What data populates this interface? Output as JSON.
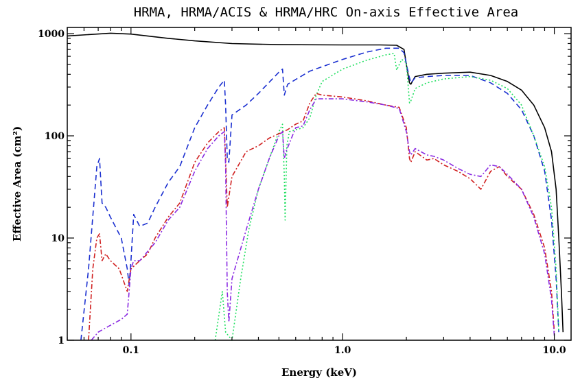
{
  "chart_data": {
    "type": "line",
    "title": "HRMA, HRMA/ACIS & HRMA/HRC On-axis Effective Area",
    "xlabel": "Energy (keV)",
    "ylabel": "Effective Area  (cm²)",
    "xscale": "log",
    "yscale": "log",
    "xlim": [
      0.05,
      12.0
    ],
    "ylim": [
      1,
      1150
    ],
    "grid": false,
    "x_ticks": [
      {
        "value": 0.1,
        "label": "0.1"
      },
      {
        "value": 1.0,
        "label": "1.0"
      },
      {
        "value": 10.0,
        "label": "10.0"
      }
    ],
    "y_ticks": [
      {
        "value": 1,
        "label": "1"
      },
      {
        "value": 10,
        "label": "10"
      },
      {
        "value": 100,
        "label": "100"
      },
      {
        "value": 1000,
        "label": "1000"
      }
    ],
    "series": [
      {
        "color": "#000000",
        "dash": "solid",
        "points": [
          [
            0.05,
            950
          ],
          [
            0.08,
            1010
          ],
          [
            0.1,
            990
          ],
          [
            0.15,
            900
          ],
          [
            0.2,
            850
          ],
          [
            0.3,
            800
          ],
          [
            0.5,
            780
          ],
          [
            1.0,
            775
          ],
          [
            1.5,
            775
          ],
          [
            1.8,
            770
          ],
          [
            1.95,
            700
          ],
          [
            2.0,
            500
          ],
          [
            2.07,
            330
          ],
          [
            2.1,
            320
          ],
          [
            2.2,
            380
          ],
          [
            2.5,
            400
          ],
          [
            3.0,
            410
          ],
          [
            4.0,
            420
          ],
          [
            5.0,
            390
          ],
          [
            6.0,
            340
          ],
          [
            7.0,
            280
          ],
          [
            8.0,
            200
          ],
          [
            9.0,
            120
          ],
          [
            9.7,
            70
          ],
          [
            10.2,
            30
          ],
          [
            10.5,
            10
          ],
          [
            10.8,
            3
          ],
          [
            11.0,
            1.2
          ]
        ]
      },
      {
        "color": "#1a2fd0",
        "dash": "dashed",
        "points": [
          [
            0.058,
            1
          ],
          [
            0.063,
            5
          ],
          [
            0.069,
            50
          ],
          [
            0.071,
            60
          ],
          [
            0.073,
            22
          ],
          [
            0.076,
            20
          ],
          [
            0.08,
            16
          ],
          [
            0.09,
            10
          ],
          [
            0.096,
            5
          ],
          [
            0.098,
            3.5
          ],
          [
            0.1,
            6
          ],
          [
            0.103,
            17
          ],
          [
            0.11,
            13
          ],
          [
            0.12,
            14
          ],
          [
            0.13,
            20
          ],
          [
            0.15,
            35
          ],
          [
            0.17,
            50
          ],
          [
            0.2,
            120
          ],
          [
            0.23,
            200
          ],
          [
            0.26,
            300
          ],
          [
            0.276,
            350
          ],
          [
            0.28,
            200
          ],
          [
            0.285,
            60
          ],
          [
            0.29,
            55
          ],
          [
            0.3,
            160
          ],
          [
            0.35,
            200
          ],
          [
            0.4,
            260
          ],
          [
            0.5,
            420
          ],
          [
            0.52,
            450
          ],
          [
            0.53,
            250
          ],
          [
            0.55,
            320
          ],
          [
            0.7,
            430
          ],
          [
            1.0,
            560
          ],
          [
            1.3,
            660
          ],
          [
            1.6,
            720
          ],
          [
            1.85,
            720
          ],
          [
            1.95,
            650
          ],
          [
            2.05,
            400
          ],
          [
            2.1,
            330
          ],
          [
            2.2,
            370
          ],
          [
            2.5,
            380
          ],
          [
            3.0,
            390
          ],
          [
            4.0,
            390
          ],
          [
            5.0,
            330
          ],
          [
            6.0,
            260
          ],
          [
            7.0,
            180
          ],
          [
            8.0,
            100
          ],
          [
            9.0,
            45
          ],
          [
            9.7,
            15
          ],
          [
            10.2,
            4
          ],
          [
            10.5,
            1.2
          ]
        ]
      },
      {
        "color": "#20e060",
        "dash": "dotted",
        "points": [
          [
            0.25,
            1
          ],
          [
            0.27,
            3
          ],
          [
            0.28,
            1.2
          ],
          [
            0.3,
            1
          ],
          [
            0.33,
            4
          ],
          [
            0.36,
            12
          ],
          [
            0.4,
            30
          ],
          [
            0.45,
            60
          ],
          [
            0.5,
            110
          ],
          [
            0.52,
            130
          ],
          [
            0.53,
            40
          ],
          [
            0.535,
            15
          ],
          [
            0.545,
            80
          ],
          [
            0.56,
            110
          ],
          [
            0.65,
            120
          ],
          [
            0.7,
            150
          ],
          [
            0.75,
            250
          ],
          [
            0.8,
            340
          ],
          [
            1.0,
            450
          ],
          [
            1.3,
            550
          ],
          [
            1.6,
            620
          ],
          [
            1.75,
            640
          ],
          [
            1.8,
            440
          ],
          [
            1.9,
            560
          ],
          [
            2.0,
            520
          ],
          [
            2.07,
            210
          ],
          [
            2.1,
            220
          ],
          [
            2.2,
            290
          ],
          [
            2.5,
            330
          ],
          [
            3.0,
            360
          ],
          [
            4.0,
            380
          ],
          [
            5.0,
            350
          ],
          [
            6.0,
            290
          ],
          [
            7.0,
            200
          ],
          [
            8.0,
            100
          ],
          [
            9.0,
            50
          ],
          [
            9.7,
            20
          ],
          [
            10.2,
            5
          ],
          [
            10.5,
            1.2
          ]
        ]
      },
      {
        "color": "#d02020",
        "dash": "dashdot",
        "points": [
          [
            0.063,
            1
          ],
          [
            0.066,
            5
          ],
          [
            0.069,
            10
          ],
          [
            0.071,
            11
          ],
          [
            0.073,
            6
          ],
          [
            0.076,
            7
          ],
          [
            0.08,
            6
          ],
          [
            0.088,
            5
          ],
          [
            0.096,
            3
          ],
          [
            0.1,
            5
          ],
          [
            0.11,
            6
          ],
          [
            0.12,
            7
          ],
          [
            0.13,
            10
          ],
          [
            0.15,
            16
          ],
          [
            0.17,
            22
          ],
          [
            0.2,
            55
          ],
          [
            0.23,
            85
          ],
          [
            0.26,
            110
          ],
          [
            0.276,
            120
          ],
          [
            0.28,
            60
          ],
          [
            0.285,
            20
          ],
          [
            0.3,
            40
          ],
          [
            0.35,
            70
          ],
          [
            0.4,
            80
          ],
          [
            0.45,
            95
          ],
          [
            0.5,
            105
          ],
          [
            0.55,
            115
          ],
          [
            0.6,
            130
          ],
          [
            0.65,
            140
          ],
          [
            0.7,
            210
          ],
          [
            0.75,
            260
          ],
          [
            0.8,
            250
          ],
          [
            1.0,
            240
          ],
          [
            1.3,
            220
          ],
          [
            1.6,
            200
          ],
          [
            1.85,
            190
          ],
          [
            2.0,
            120
          ],
          [
            2.07,
            60
          ],
          [
            2.1,
            55
          ],
          [
            2.2,
            70
          ],
          [
            2.5,
            58
          ],
          [
            2.7,
            60
          ],
          [
            3.0,
            52
          ],
          [
            3.5,
            45
          ],
          [
            4.0,
            38
          ],
          [
            4.5,
            30
          ],
          [
            5.0,
            45
          ],
          [
            5.5,
            50
          ],
          [
            6.0,
            40
          ],
          [
            7.0,
            30
          ],
          [
            8.0,
            17
          ],
          [
            9.0,
            8
          ],
          [
            9.7,
            3
          ],
          [
            10.0,
            1.2
          ]
        ]
      },
      {
        "color": "#8a2be2",
        "dash": "dashdot",
        "points": [
          [
            0.065,
            1
          ],
          [
            0.07,
            1.2
          ],
          [
            0.08,
            1.4
          ],
          [
            0.09,
            1.6
          ],
          [
            0.096,
            1.8
          ],
          [
            0.1,
            5
          ],
          [
            0.103,
            6
          ],
          [
            0.11,
            6
          ],
          [
            0.13,
            9
          ],
          [
            0.15,
            15
          ],
          [
            0.17,
            20
          ],
          [
            0.2,
            45
          ],
          [
            0.23,
            75
          ],
          [
            0.26,
            100
          ],
          [
            0.276,
            110
          ],
          [
            0.28,
            50
          ],
          [
            0.285,
            3
          ],
          [
            0.29,
            1.5
          ],
          [
            0.3,
            4
          ],
          [
            0.35,
            12
          ],
          [
            0.4,
            30
          ],
          [
            0.45,
            60
          ],
          [
            0.5,
            100
          ],
          [
            0.52,
            110
          ],
          [
            0.53,
            60
          ],
          [
            0.54,
            70
          ],
          [
            0.6,
            120
          ],
          [
            0.65,
            125
          ],
          [
            0.7,
            180
          ],
          [
            0.75,
            230
          ],
          [
            0.8,
            230
          ],
          [
            1.0,
            230
          ],
          [
            1.3,
            215
          ],
          [
            1.6,
            200
          ],
          [
            1.85,
            185
          ],
          [
            2.0,
            110
          ],
          [
            2.07,
            70
          ],
          [
            2.1,
            65
          ],
          [
            2.2,
            75
          ],
          [
            2.5,
            65
          ],
          [
            2.7,
            63
          ],
          [
            3.0,
            58
          ],
          [
            3.5,
            48
          ],
          [
            4.0,
            42
          ],
          [
            4.5,
            40
          ],
          [
            5.0,
            52
          ],
          [
            5.5,
            50
          ],
          [
            6.0,
            42
          ],
          [
            7.0,
            30
          ],
          [
            8.0,
            16
          ],
          [
            9.0,
            7
          ],
          [
            9.7,
            2.5
          ],
          [
            10.0,
            1.1
          ]
        ]
      }
    ]
  }
}
